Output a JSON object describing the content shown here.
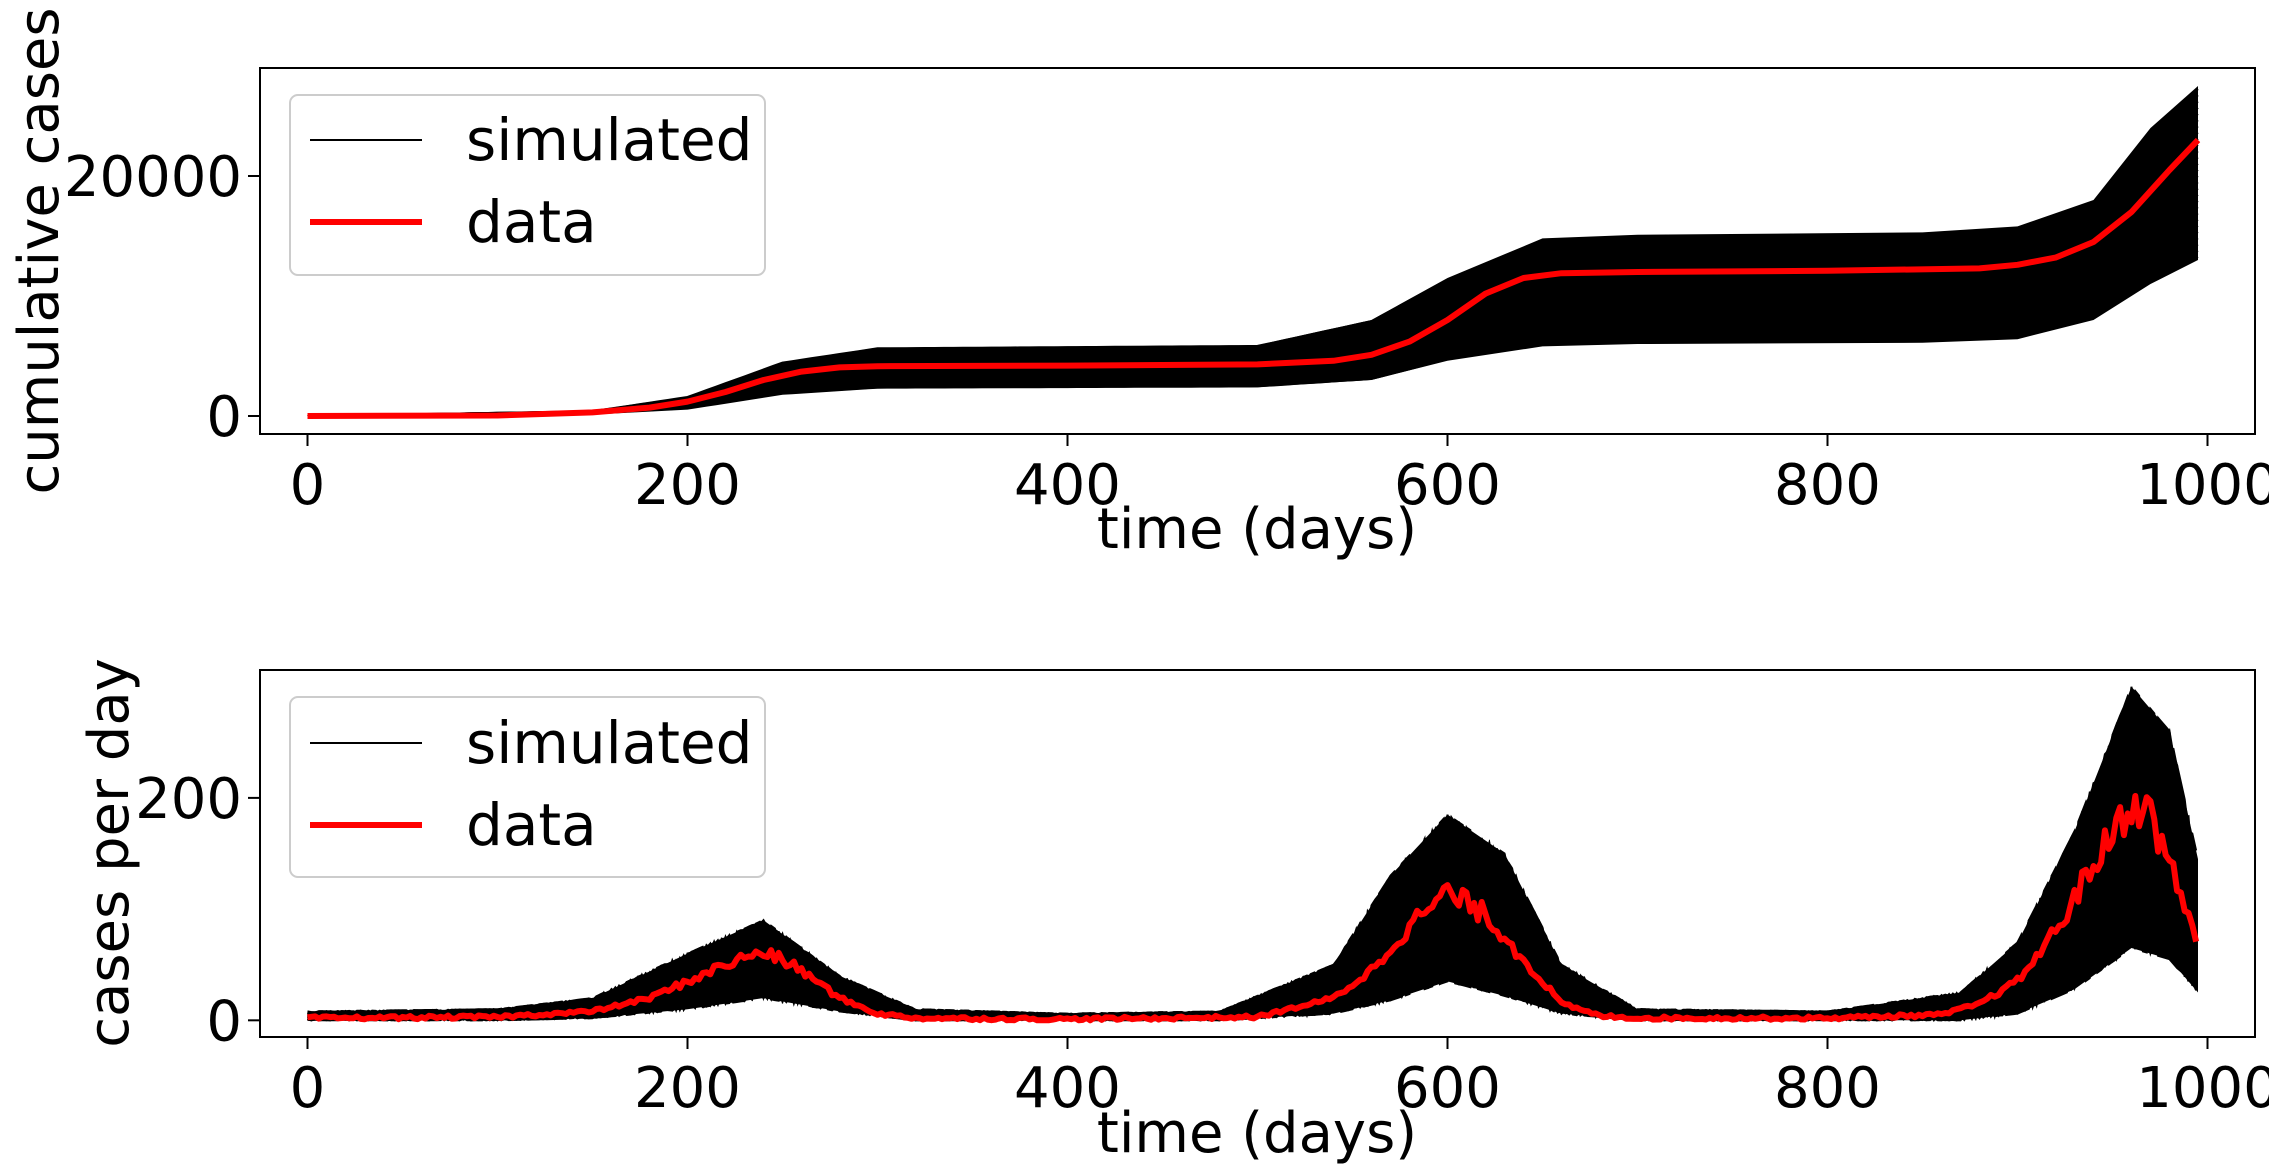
{
  "colors": {
    "simulated": "#000000",
    "data": "#ff0000",
    "legend_frame": "#cccccc",
    "axes": "#000000"
  },
  "chart_data": [
    {
      "type": "line",
      "xlabel": "time (days)",
      "ylabel": "cumulative cases",
      "xlim": [
        -25,
        1025
      ],
      "ylim": [
        -1500,
        29000
      ],
      "xticks": [
        0,
        200,
        400,
        600,
        800,
        1000
      ],
      "xtick_labels": [
        "0",
        "200",
        "400",
        "600",
        "800",
        "1000"
      ],
      "yticks": [
        0,
        20000
      ],
      "ytick_labels": [
        "0",
        "20000"
      ],
      "grid": false,
      "legend": {
        "placement": "upper-left",
        "entries": [
          {
            "label": "simulated"
          },
          {
            "label": "data"
          }
        ]
      },
      "simulated_ensemble": {
        "x": [
          0,
          150,
          200,
          250,
          300,
          500,
          560,
          600,
          650,
          700,
          850,
          900,
          940,
          970,
          995
        ],
        "min": [
          0,
          200,
          600,
          1800,
          2300,
          2400,
          3000,
          4600,
          5800,
          6000,
          6100,
          6400,
          8000,
          11000,
          13000
        ],
        "max": [
          0,
          400,
          1600,
          4500,
          5700,
          5900,
          8000,
          11500,
          14800,
          15100,
          15300,
          15800,
          18000,
          24000,
          27500
        ]
      },
      "series": [
        {
          "name": "data",
          "x": [
            0,
            100,
            150,
            180,
            200,
            220,
            240,
            260,
            280,
            300,
            400,
            500,
            540,
            560,
            580,
            600,
            620,
            640,
            660,
            700,
            800,
            880,
            900,
            920,
            940,
            960,
            980,
            995
          ],
          "y": [
            0,
            40,
            300,
            700,
            1200,
            2000,
            3000,
            3700,
            4050,
            4150,
            4200,
            4300,
            4600,
            5100,
            6200,
            8000,
            10200,
            11500,
            11900,
            12000,
            12100,
            12300,
            12600,
            13200,
            14500,
            17000,
            20500,
            23000
          ]
        }
      ]
    },
    {
      "type": "line",
      "xlabel": "time (days)",
      "ylabel": "cases per day",
      "xlim": [
        -25,
        1025
      ],
      "ylim": [
        -15,
        315
      ],
      "xticks": [
        0,
        200,
        400,
        600,
        800,
        1000
      ],
      "xtick_labels": [
        "0",
        "200",
        "400",
        "600",
        "800",
        "1000"
      ],
      "yticks": [
        0,
        200
      ],
      "ytick_labels": [
        "0",
        "200"
      ],
      "grid": false,
      "legend": {
        "placement": "upper-left",
        "entries": [
          {
            "label": "simulated"
          },
          {
            "label": "data"
          }
        ]
      },
      "simulated_ensemble": {
        "x": [
          0,
          100,
          150,
          200,
          240,
          280,
          320,
          400,
          480,
          540,
          570,
          600,
          630,
          660,
          700,
          800,
          870,
          900,
          930,
          960,
          980,
          995
        ],
        "min": [
          0,
          0,
          2,
          10,
          20,
          8,
          0,
          0,
          0,
          6,
          18,
          35,
          22,
          6,
          0,
          0,
          0,
          6,
          28,
          65,
          55,
          25
        ],
        "max": [
          8,
          10,
          20,
          60,
          90,
          40,
          10,
          6,
          8,
          50,
          130,
          185,
          150,
          50,
          10,
          8,
          25,
          70,
          170,
          300,
          260,
          145
        ]
      },
      "series": [
        {
          "name": "data",
          "x": [
            0,
            100,
            150,
            180,
            200,
            220,
            240,
            260,
            280,
            300,
            320,
            400,
            500,
            540,
            560,
            580,
            600,
            620,
            640,
            660,
            680,
            700,
            800,
            860,
            880,
            900,
            920,
            940,
            960,
            970,
            980,
            995
          ],
          "y": [
            2,
            3,
            8,
            20,
            35,
            50,
            62,
            45,
            20,
            6,
            2,
            1,
            3,
            20,
            45,
            85,
            115,
            95,
            55,
            15,
            4,
            2,
            2,
            5,
            15,
            35,
            80,
            140,
            195,
            185,
            140,
            70
          ]
        }
      ]
    }
  ]
}
